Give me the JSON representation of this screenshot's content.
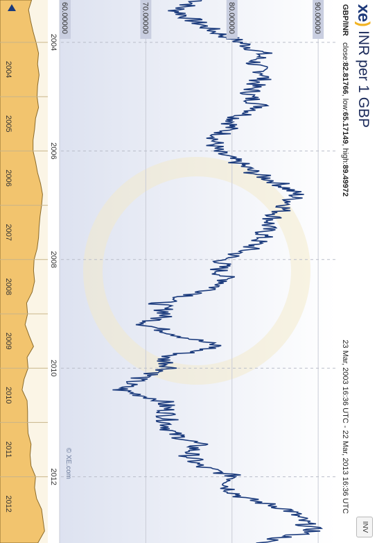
{
  "header": {
    "logo_text": "xe",
    "title": "INR per 1 GBP",
    "pair": "GBP/INR",
    "close_label": "close:",
    "close_value": "82.81766",
    "low_label": "low:",
    "low_value": "65.17149",
    "high_label": "high:",
    "high_value": "89.49972",
    "date_range": "23 Mar, 2003 16:36 UTC - 22 Mar, 2013 16:36 UTC",
    "invert_label": "INV"
  },
  "watermark": "© XE.com",
  "colors": {
    "line": "#1a3a7c",
    "plot_bg_top": "#ffffff",
    "plot_bg_bottom": "#dfe3f1",
    "overview_fill": "#f2c46e",
    "overview_line": "#8a6a2a",
    "tick_label_bg": "#c9cee0"
  },
  "chart_data": {
    "type": "line",
    "title": "INR per 1 GBP",
    "series_name": "GBP/INR",
    "ylim": [
      60,
      92
    ],
    "yticks": [
      90,
      80,
      70,
      60
    ],
    "ytick_labels": [
      "90.00000",
      "80.00000",
      "70.00000",
      "60.00000"
    ],
    "xlim": [
      2003.22,
      2013.22
    ],
    "xticks": [
      2004,
      2006,
      2008,
      2010,
      2012
    ],
    "xtick_labels": [
      "2004",
      "2006",
      "2008",
      "2010",
      "2012"
    ],
    "overview_ticks": [
      "2004",
      "2005",
      "2006",
      "2007",
      "2008",
      "2009",
      "2010",
      "2011",
      "2012"
    ],
    "grid": true,
    "x": [
      2003.22,
      2003.4,
      2003.6,
      2003.8,
      2004.0,
      2004.2,
      2004.4,
      2004.6,
      2004.8,
      2005.0,
      2005.2,
      2005.4,
      2005.6,
      2005.8,
      2006.0,
      2006.2,
      2006.4,
      2006.6,
      2006.8,
      2007.0,
      2007.2,
      2007.4,
      2007.6,
      2007.8,
      2008.0,
      2008.2,
      2008.4,
      2008.6,
      2008.8,
      2009.0,
      2009.2,
      2009.4,
      2009.6,
      2009.8,
      2010.0,
      2010.2,
      2010.4,
      2010.6,
      2010.8,
      2011.0,
      2011.2,
      2011.4,
      2011.6,
      2011.8,
      2012.0,
      2012.2,
      2012.4,
      2012.6,
      2012.8,
      2013.0,
      2013.22
    ],
    "values": [
      76.5,
      73.5,
      75.5,
      78.0,
      81.0,
      83.5,
      82.5,
      84.0,
      82.5,
      82.0,
      83.5,
      80.5,
      79.5,
      78.0,
      78.0,
      80.5,
      82.5,
      85.5,
      87.5,
      86.5,
      85.0,
      84.0,
      83.5,
      82.0,
      79.0,
      78.5,
      79.5,
      77.0,
      71.5,
      72.5,
      70.0,
      74.0,
      78.5,
      72.0,
      73.0,
      69.0,
      67.0,
      72.0,
      72.5,
      72.5,
      73.0,
      76.0,
      75.0,
      76.0,
      80.5,
      79.5,
      81.5,
      86.5,
      88.0,
      89.5,
      82.8
    ]
  }
}
